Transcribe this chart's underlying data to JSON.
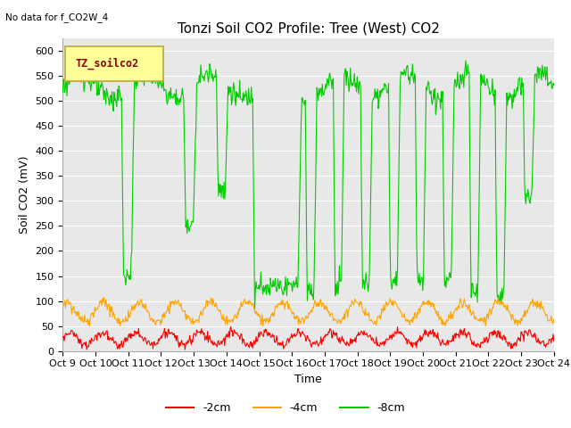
{
  "title": "Tonzi Soil CO2 Profile: Tree (West) CO2",
  "no_data_text": "No data for f_CO2W_4",
  "ylabel": "Soil CO2 (mV)",
  "xlabel": "Time",
  "ylim": [
    0,
    625
  ],
  "yticks": [
    0,
    50,
    100,
    150,
    200,
    250,
    300,
    350,
    400,
    450,
    500,
    550,
    600
  ],
  "xtick_labels": [
    "Oct 9",
    "Oct 10",
    "Oct 11",
    "Oct 12",
    "Oct 13",
    "Oct 14",
    "Oct 15",
    "Oct 16",
    "Oct 17",
    "Oct 18",
    "Oct 19",
    "Oct 20",
    "Oct 21",
    "Oct 22",
    "Oct 23",
    "Oct 24"
  ],
  "line_colors": {
    "red": "#ff0000",
    "orange": "#ffa500",
    "green": "#00cc00"
  },
  "legend_box_label": "TZ_soilco2",
  "legend_box_facecolor": "#ffff99",
  "legend_box_edgecolor": "#bbaa33",
  "legend_entries": [
    "-2cm",
    "-4cm",
    "-8cm"
  ],
  "plot_bg_color": "#e8e8e8",
  "fig_bg_color": "#ffffff",
  "grid_color": "#ffffff",
  "title_fontsize": 11,
  "axis_label_fontsize": 9,
  "tick_fontsize": 8,
  "legend_label_color": "#8B0000"
}
